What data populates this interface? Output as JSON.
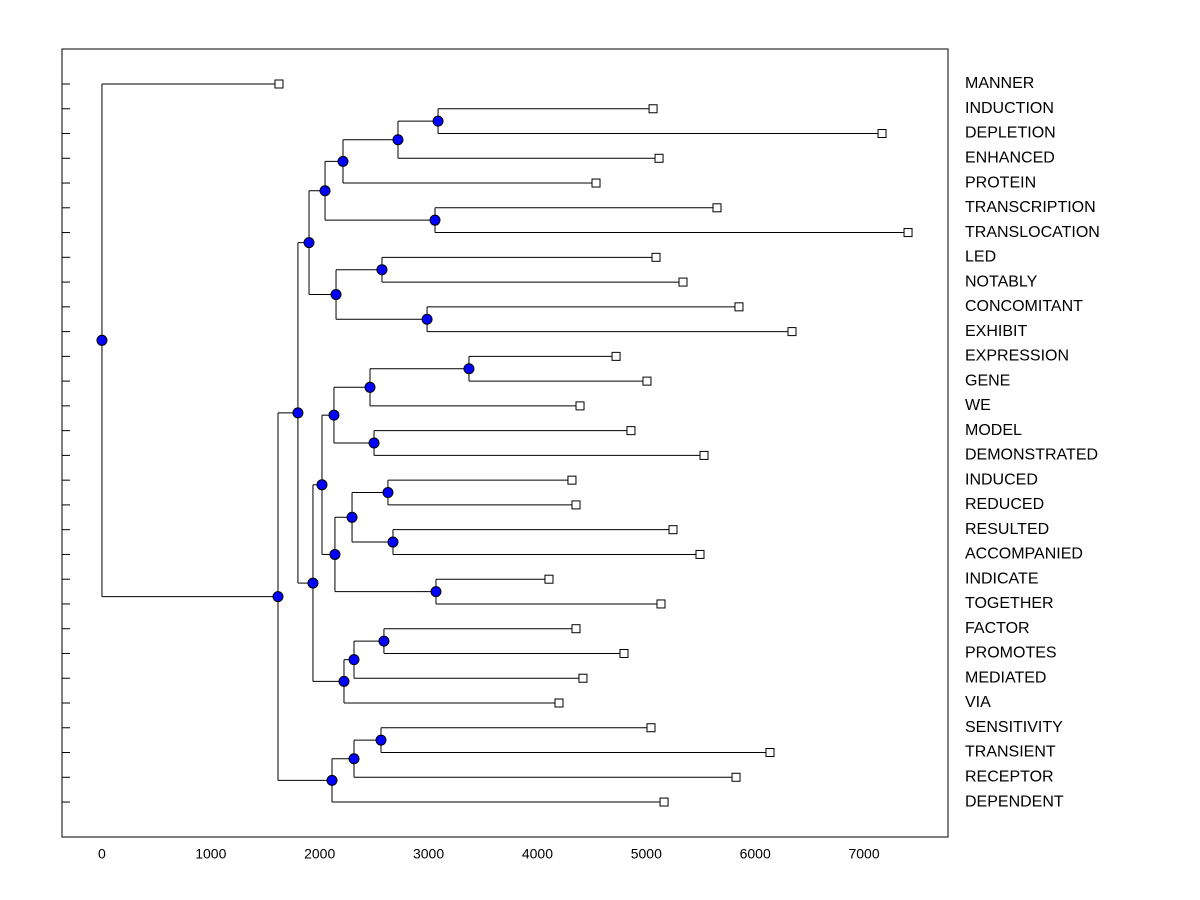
{
  "chart_data": {
    "type": "dendrogram",
    "xlim": [
      -367,
      7771
    ],
    "xticks": [
      0,
      1000,
      2000,
      3000,
      4000,
      5000,
      6000,
      7000
    ],
    "node_color": "#0000ff",
    "leaf_color": "#ffffff",
    "tree": {
      "value": 0,
      "children": [
        {
          "label": "MANNER",
          "value": 1626
        },
        {
          "value": 1617,
          "children": [
            {
              "value": 1800,
              "children": [
                {
                  "value": 1902,
                  "children": [
                    {
                      "value": 2049,
                      "children": [
                        {
                          "value": 2214,
                          "children": [
                            {
                              "value": 2719,
                              "children": [
                                {
                                  "value": 3087,
                                  "children": [
                                    {
                                      "label": "INDUCTION",
                                      "value": 5062
                                    },
                                    {
                                      "label": "DEPLETION",
                                      "value": 7165
                                    }
                                  ]
                                },
                                {
                                  "label": "ENHANCED",
                                  "value": 5117
                                }
                              ]
                            },
                            {
                              "label": "PROTEIN",
                              "value": 4538
                            }
                          ]
                        },
                        {
                          "value": 3059,
                          "children": [
                            {
                              "label": "TRANSCRIPTION",
                              "value": 5649
                            },
                            {
                              "label": "TRANSLOCATION",
                              "value": 7404
                            }
                          ]
                        }
                      ]
                    },
                    {
                      "value": 2150,
                      "children": [
                        {
                          "value": 2572,
                          "children": [
                            {
                              "label": "LED",
                              "value": 5089
                            },
                            {
                              "label": "NOTABLY",
                              "value": 5337
                            }
                          ]
                        },
                        {
                          "value": 2986,
                          "children": [
                            {
                              "label": "CONCOMITANT",
                              "value": 5851
                            },
                            {
                              "label": "EXHIBIT",
                              "value": 6338
                            }
                          ]
                        }
                      ]
                    }
                  ]
                },
                {
                  "value": 1938,
                  "children": [
                    {
                      "value": 2021,
                      "children": [
                        {
                          "value": 2131,
                          "children": [
                            {
                              "value": 2462,
                              "children": [
                                {
                                  "value": 3371,
                                  "children": [
                                    {
                                      "label": "EXPRESSION",
                                      "value": 4722
                                    },
                                    {
                                      "label": "GENE",
                                      "value": 5006
                                    }
                                  ]
                                },
                                {
                                  "label": "WE",
                                  "value": 4391
                                }
                              ]
                            },
                            {
                              "value": 2499,
                              "children": [
                                {
                                  "label": "MODEL",
                                  "value": 4859
                                },
                                {
                                  "label": "DEMONSTRATED",
                                  "value": 5530
                                }
                              ]
                            }
                          ]
                        },
                        {
                          "value": 2140,
                          "children": [
                            {
                              "value": 2297,
                              "children": [
                                {
                                  "value": 2627,
                                  "children": [
                                    {
                                      "label": "INDUCED",
                                      "value": 4317
                                    },
                                    {
                                      "label": "REDUCED",
                                      "value": 4354
                                    }
                                  ]
                                },
                                {
                                  "value": 2673,
                                  "children": [
                                    {
                                      "label": "RESULTED",
                                      "value": 5245
                                    },
                                    {
                                      "label": "ACCOMPANIED",
                                      "value": 5493
                                    }
                                  ]
                                }
                              ]
                            },
                            {
                              "value": 3068,
                              "children": [
                                {
                                  "label": "INDICATE",
                                  "value": 4106
                                },
                                {
                                  "label": "TOGETHER",
                                  "value": 5135
                                }
                              ]
                            }
                          ]
                        }
                      ]
                    },
                    {
                      "value": 2223,
                      "children": [
                        {
                          "value": 2315,
                          "children": [
                            {
                              "value": 2590,
                              "children": [
                                {
                                  "label": "FACTOR",
                                  "value": 4354
                                },
                                {
                                  "label": "PROMOTES",
                                  "value": 4795
                                }
                              ]
                            },
                            {
                              "label": "MEDIATED",
                              "value": 4418
                            }
                          ]
                        },
                        {
                          "label": "VIA",
                          "value": 4198
                        }
                      ]
                    }
                  ]
                }
              ]
            },
            {
              "value": 2113,
              "children": [
                {
                  "value": 2315,
                  "children": [
                    {
                      "value": 2563,
                      "children": [
                        {
                          "label": "SENSITIVITY",
                          "value": 5043
                        },
                        {
                          "label": "TRANSIENT",
                          "value": 6136
                        }
                      ]
                    },
                    {
                      "label": "RECEPTOR",
                      "value": 5824
                    }
                  ]
                },
                {
                  "label": "DEPENDENT",
                  "value": 5163
                }
              ]
            }
          ]
        }
      ]
    }
  }
}
